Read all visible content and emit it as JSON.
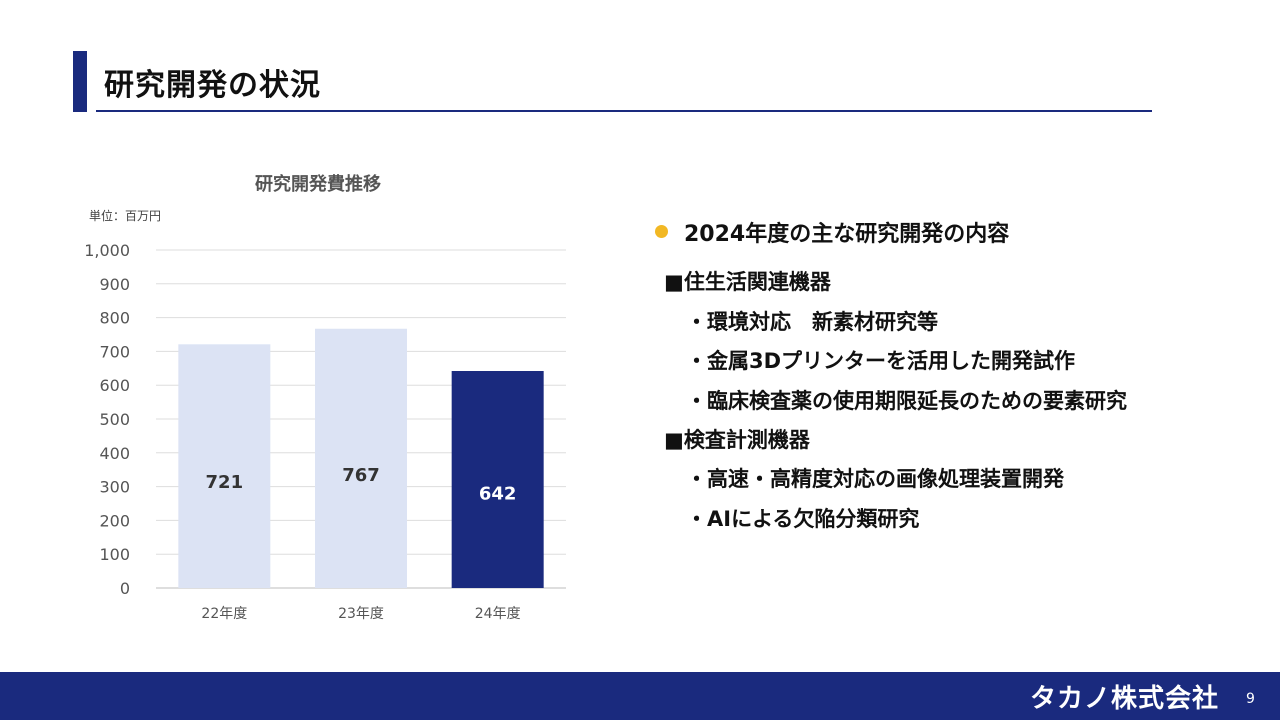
{
  "header": {
    "title": "研究開発の状況"
  },
  "chart_data": {
    "type": "bar",
    "title": "研究開発費推移",
    "unit": "単位：百万円",
    "categories": [
      "22年度",
      "23年度",
      "24年度"
    ],
    "values": [
      721,
      767,
      642
    ],
    "ylim": [
      0,
      1000
    ],
    "yticks": [
      "0",
      "100",
      "200",
      "300",
      "400",
      "500",
      "600",
      "700",
      "800",
      "900",
      "1,000"
    ],
    "grid": true,
    "colors": [
      "#dce3f4",
      "#dce3f4",
      "#1a2a7e"
    ],
    "label_colors": [
      "#333333",
      "#333333",
      "#ffffff"
    ]
  },
  "content": {
    "heading": "2024年度の主な研究開発の内容",
    "sections": [
      {
        "label": "■住生活関連機器",
        "items": [
          "・環境対応　新素材研究等",
          "・金属3Dプリンターを活用した開発試作",
          "・臨床検査薬の使用期限延長のための要素研究"
        ]
      },
      {
        "label": "■検査計測機器",
        "items": [
          "・高速・高精度対応の画像処理装置開発",
          "・AIによる欠陥分類研究"
        ]
      }
    ]
  },
  "footer": {
    "logo_text": "タカノ株式会社",
    "page_number": "9"
  },
  "colors": {
    "accent": "#1a2a7e",
    "bullet": "#f2b824"
  }
}
